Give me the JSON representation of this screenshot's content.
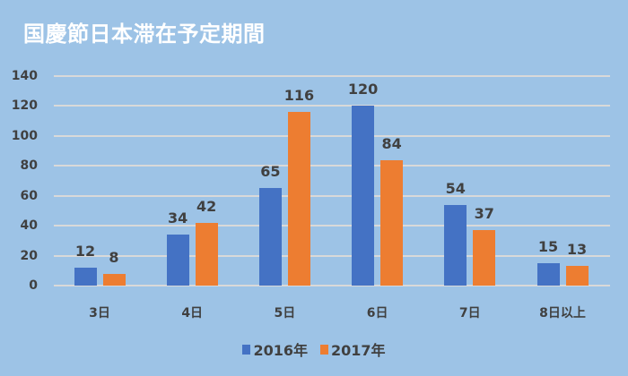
{
  "chart_data": {
    "type": "bar",
    "title": "国慶節日本滞在予定期間",
    "categories": [
      "3日",
      "4日",
      "5日",
      "6日",
      "7日",
      "8日以上"
    ],
    "series": [
      {
        "name": "2016年",
        "color": "#4472c4",
        "values": [
          12,
          34,
          65,
          120,
          54,
          15
        ]
      },
      {
        "name": "2017年",
        "color": "#ed7d31",
        "values": [
          8,
          42,
          116,
          84,
          37,
          13
        ]
      }
    ],
    "xlabel": "",
    "ylabel": "",
    "ylim": [
      0,
      140
    ],
    "yticks": [
      0,
      20,
      40,
      60,
      80,
      100,
      120,
      140
    ],
    "grid": true,
    "legend_position": "bottom",
    "data_labels": true
  },
  "colors": {
    "background": "#9dc3e6",
    "gridline": "#d9d9d9",
    "text": "#404040",
    "title": "#ffffff"
  }
}
